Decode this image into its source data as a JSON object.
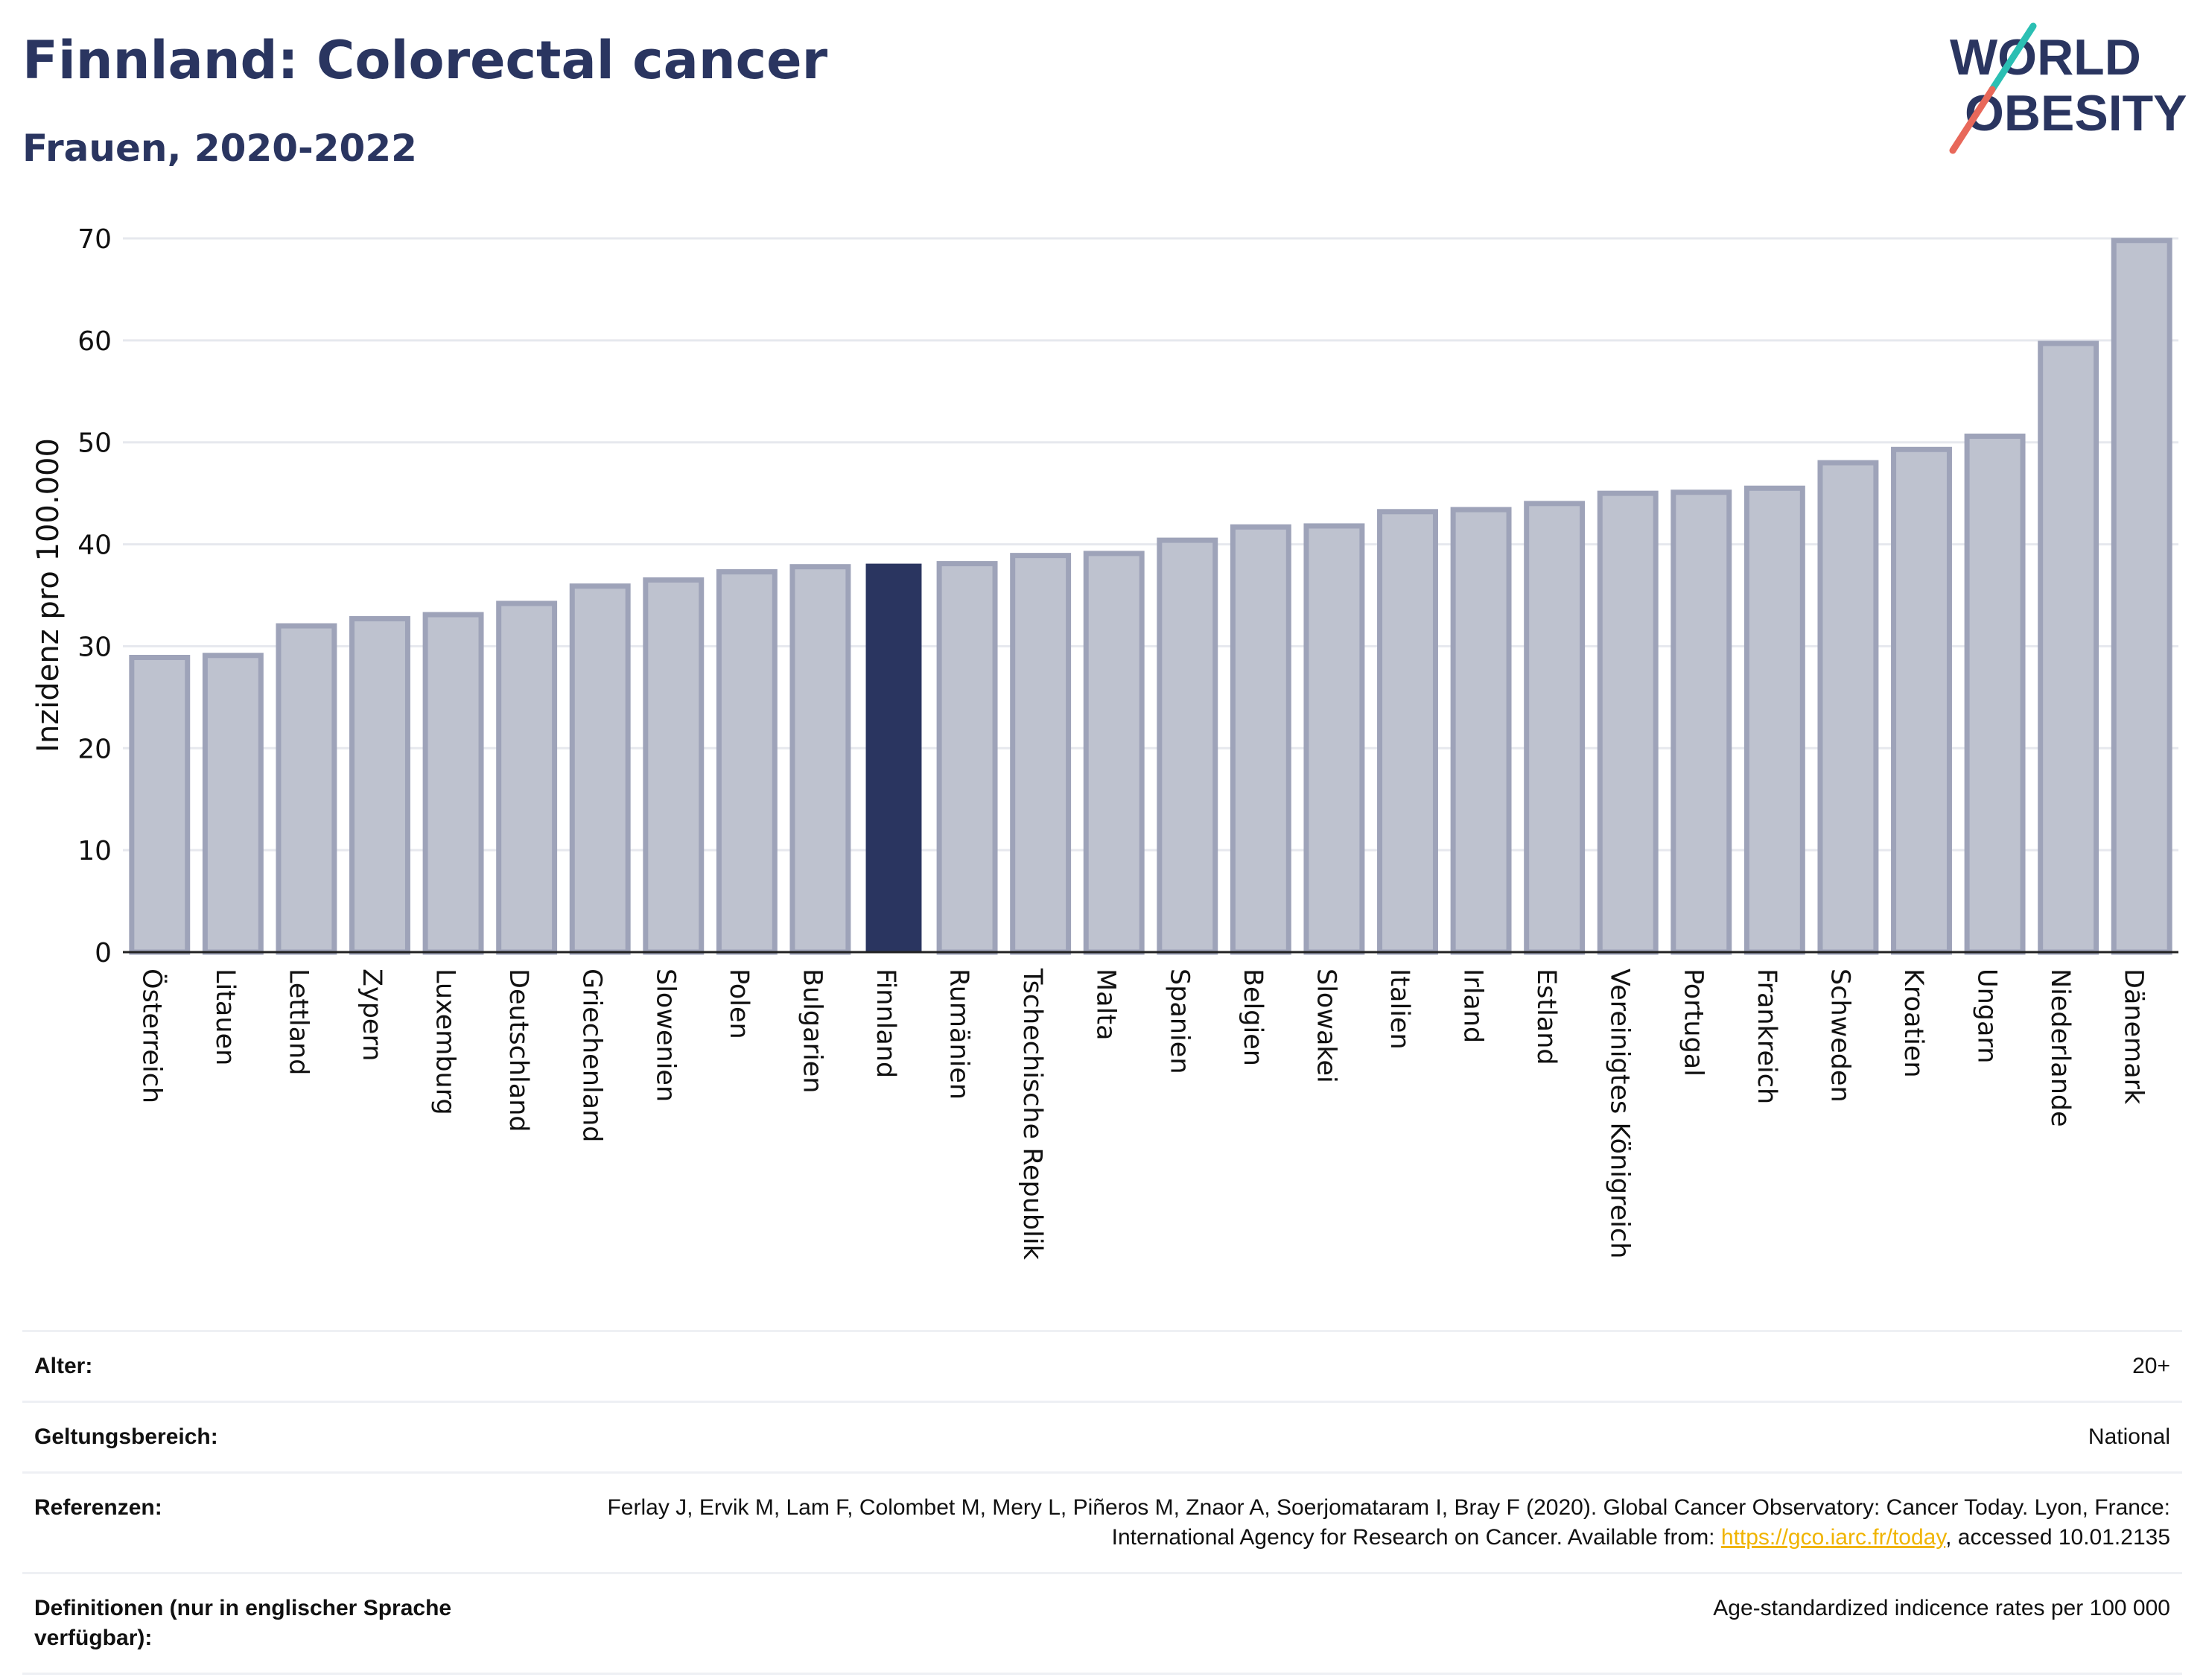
{
  "header": {
    "title": "Finnland: Colorectal cancer",
    "subtitle": "Frauen, 2020-2022"
  },
  "logo": {
    "line1": "WORLD",
    "line2": "OBESITY"
  },
  "colors": {
    "bar": "#bec2cf",
    "bar_border": "#9ea3b9",
    "highlight": "#2a3560",
    "grid": "#e6e8ee",
    "title": "#2a3560",
    "logo_teal": "#2bbfb3",
    "logo_coral": "#e8685a"
  },
  "chart_data": {
    "type": "bar",
    "ylabel": "Inzidenz pro 100.000",
    "xlabel": "",
    "ylim": [
      0,
      70
    ],
    "yticks": [
      0,
      10,
      20,
      30,
      40,
      50,
      60,
      70
    ],
    "grid": true,
    "highlight": "Finnland",
    "categories": [
      "Österreich",
      "Litauen",
      "Lettland",
      "Zypern",
      "Luxemburg",
      "Deutschland",
      "Griechenland",
      "Slowenien",
      "Polen",
      "Bulgarien",
      "Finnland",
      "Rumänien",
      "Tschechische Republik",
      "Malta",
      "Spanien",
      "Belgien",
      "Slowakei",
      "Italien",
      "Irland",
      "Estland",
      "Vereinigtes Königreich",
      "Portugal",
      "Frankreich",
      "Schweden",
      "Kroatien",
      "Ungarn",
      "Niederlande",
      "Dänemark"
    ],
    "values": [
      28.9,
      29.1,
      32.0,
      32.7,
      33.1,
      34.2,
      35.9,
      36.5,
      37.3,
      37.8,
      38.1,
      38.1,
      38.9,
      39.1,
      40.4,
      41.7,
      41.8,
      43.2,
      43.4,
      44.0,
      45.0,
      45.1,
      45.5,
      48.0,
      49.3,
      50.6,
      59.7,
      69.8
    ]
  },
  "info": {
    "age_label": "Alter:",
    "age_value": "20+",
    "scope_label": "Geltungsbereich:",
    "scope_value": "National",
    "ref_label": "Referenzen:",
    "ref_text_1": "Ferlay J, Ervik M, Lam F, Colombet M, Mery L, Piñeros M, Znaor A, Soerjomataram I, Bray F (2020). Global Cancer Observatory: Cancer Today. Lyon, France: International Agency for Research on Cancer. Available from: ",
    "ref_link": "https://gco.iarc.fr/today",
    "ref_text_2": ", accessed 10.01.2135",
    "def_label": "Definitionen (nur in englischer Sprache verfügbar):",
    "def_value": "Age-standardized indicence rates per 100 000"
  }
}
